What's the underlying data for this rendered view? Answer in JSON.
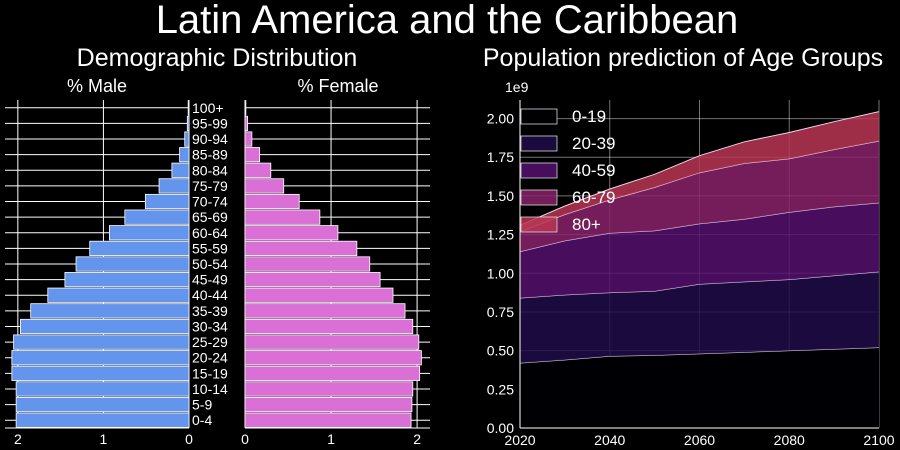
{
  "figure": {
    "title": "Latin America and the Caribbean"
  },
  "colors": {
    "background": "#000000",
    "male_bar": "#6495ED",
    "female_bar": "#DA70D6",
    "grid": "#ffffff",
    "area_0_19": "#000004",
    "area_20_39": "#1f0c48",
    "area_40_59": "#550f6d",
    "area_60_79": "#88226a",
    "area_80_plus": "#ba3655"
  },
  "chart_data": [
    {
      "type": "bar",
      "orientation": "horizontal",
      "title": "Demographic Distribution",
      "side_labels": {
        "male": "% Male",
        "female": "% Female"
      },
      "categories": [
        "0-4",
        "5-9",
        "10-14",
        "15-19",
        "20-24",
        "25-29",
        "30-34",
        "35-39",
        "40-44",
        "45-49",
        "50-54",
        "55-59",
        "60-64",
        "65-69",
        "70-74",
        "75-79",
        "80-84",
        "85-89",
        "90-94",
        "95-99",
        "100+"
      ],
      "series": [
        {
          "name": "% Male",
          "values": [
            2.02,
            2.02,
            2.02,
            2.07,
            2.07,
            2.05,
            1.97,
            1.85,
            1.65,
            1.45,
            1.32,
            1.16,
            0.93,
            0.75,
            0.51,
            0.35,
            0.2,
            0.11,
            0.05,
            0.02,
            0.01
          ]
        },
        {
          "name": "% Female",
          "values": [
            1.93,
            1.94,
            1.95,
            2.03,
            2.05,
            2.02,
            1.95,
            1.86,
            1.72,
            1.57,
            1.45,
            1.3,
            1.08,
            0.87,
            0.63,
            0.45,
            0.3,
            0.17,
            0.08,
            0.03,
            0.01
          ]
        }
      ],
      "male_ticks": [
        2,
        1,
        0
      ],
      "female_ticks": [
        0,
        1,
        2
      ],
      "xlim": [
        0,
        2.15
      ],
      "grid": true
    },
    {
      "type": "area",
      "stacked": true,
      "title": "Population prediction of Age Groups",
      "y_scale_label": "1e9",
      "x": [
        2020,
        2030,
        2040,
        2050,
        2060,
        2070,
        2080,
        2090,
        2100
      ],
      "series": [
        {
          "name": "0-19",
          "values": [
            0.42,
            0.44,
            0.465,
            0.47,
            0.48,
            0.49,
            0.5,
            0.51,
            0.52
          ]
        },
        {
          "name": "20-39",
          "values": [
            0.42,
            0.42,
            0.41,
            0.415,
            0.45,
            0.455,
            0.46,
            0.475,
            0.49
          ]
        },
        {
          "name": "40-59",
          "values": [
            0.3,
            0.35,
            0.385,
            0.39,
            0.39,
            0.405,
            0.435,
            0.445,
            0.445
          ]
        },
        {
          "name": "60-79",
          "values": [
            0.13,
            0.17,
            0.215,
            0.28,
            0.33,
            0.36,
            0.345,
            0.37,
            0.4
          ]
        },
        {
          "name": "80+",
          "values": [
            0.04,
            0.055,
            0.07,
            0.085,
            0.11,
            0.14,
            0.17,
            0.18,
            0.19
          ]
        }
      ],
      "xlim": [
        2020,
        2100
      ],
      "ylim": [
        0,
        2.12
      ],
      "x_ticks": [
        2020,
        2040,
        2060,
        2080,
        2100
      ],
      "y_ticks": [
        "0.00",
        "0.25",
        "0.50",
        "0.75",
        "1.00",
        "1.25",
        "1.50",
        "1.75",
        "2.00"
      ],
      "legend_position": "top-left",
      "grid": true
    }
  ]
}
